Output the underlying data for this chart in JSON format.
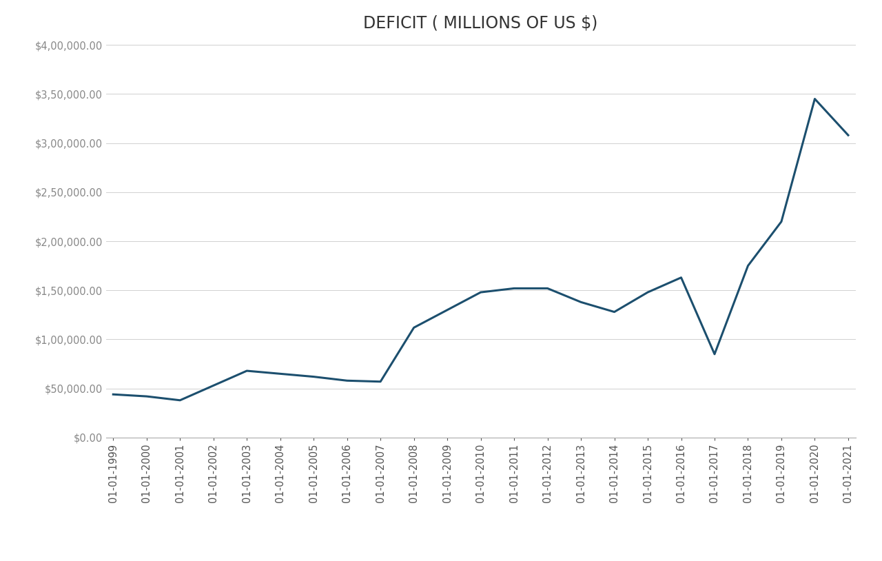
{
  "title": "DEFICIT ( MILLIONS OF US $)",
  "x_labels": [
    "01-01-1999",
    "01-01-2000",
    "01-01-2001",
    "01-01-2002",
    "01-01-2003",
    "01-01-2004",
    "01-01-2005",
    "01-01-2006",
    "01-01-2007",
    "01-01-2008",
    "01-01-2009",
    "01-01-2010",
    "01-01-2011",
    "01-01-2012",
    "01-01-2013",
    "01-01-2014",
    "01-01-2015",
    "01-01-2016",
    "01-01-2017",
    "01-01-2018",
    "01-01-2019",
    "01-01-2020",
    "01-01-2021"
  ],
  "values": [
    44000,
    42000,
    38000,
    53000,
    68000,
    65000,
    62000,
    58000,
    57000,
    112000,
    130000,
    148000,
    152000,
    152000,
    138000,
    128000,
    148000,
    163000,
    85000,
    175000,
    220000,
    345000,
    308000
  ],
  "line_color": "#1c4f6e",
  "line_width": 2.2,
  "background_color": "#ffffff",
  "grid_color": "#d0d0d0",
  "ylim": [
    0,
    400000
  ],
  "ytick_step": 50000,
  "title_fontsize": 17,
  "tick_fontsize": 10.5,
  "ytick_color": "#888888",
  "xtick_color": "#555555"
}
